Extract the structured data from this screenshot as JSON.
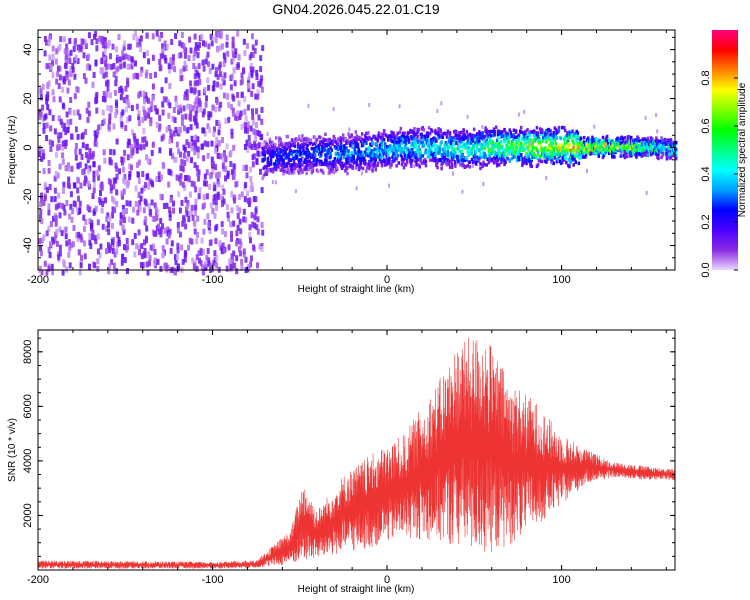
{
  "title": "GN04.2026.045.22.01.C19",
  "chart_data": [
    {
      "type": "heatmap",
      "xlabel": "Height of straight line (km)",
      "ylabel": "Frequency (Hz)",
      "xlim": [
        -200,
        165
      ],
      "ylim": [
        -50,
        48
      ],
      "x_ticks": [
        -200,
        -100,
        0,
        100
      ],
      "y_ticks": [
        -40,
        -20,
        0,
        20,
        40
      ],
      "colorbar": {
        "label": "Normalized spectral amplitude",
        "range": [
          0,
          1
        ],
        "ticks": [
          "0.0",
          "0.2",
          "0.4",
          "0.6",
          "0.8"
        ],
        "tick_values": [
          0,
          0.2,
          0.4,
          0.6,
          0.8
        ],
        "colormap": [
          "#e8d6ff",
          "#8a2be2",
          "#4b00ff",
          "#0000ff",
          "#00a0ff",
          "#00ffff",
          "#00ff80",
          "#00ff00",
          "#80ff00",
          "#ffff00",
          "#ff8000",
          "#ff0000",
          "#ff0080"
        ]
      },
      "noise_region": {
        "x_range": [
          -200,
          -72
        ],
        "freq_range": [
          -50,
          48
        ],
        "amplitude_range": [
          0.0,
          0.1
        ]
      },
      "signal_band_center": [
        {
          "x": -72,
          "f": -4
        },
        {
          "x": -60,
          "f": -3
        },
        {
          "x": -45,
          "f": -2
        },
        {
          "x": -30,
          "f": -2
        },
        {
          "x": -15,
          "f": -1
        },
        {
          "x": 0,
          "f": 0
        },
        {
          "x": 20,
          "f": 1
        },
        {
          "x": 40,
          "f": 0
        },
        {
          "x": 60,
          "f": 1
        },
        {
          "x": 80,
          "f": 1
        },
        {
          "x": 100,
          "f": 1
        },
        {
          "x": 120,
          "f": 1
        },
        {
          "x": 140,
          "f": 1
        },
        {
          "x": 165,
          "f": 0
        }
      ],
      "signal_band_peak_amplitude": [
        {
          "x": -72,
          "a": 0.3
        },
        {
          "x": -40,
          "a": 0.35
        },
        {
          "x": 0,
          "a": 0.45
        },
        {
          "x": 40,
          "a": 0.55
        },
        {
          "x": 70,
          "a": 0.7
        },
        {
          "x": 100,
          "a": 0.85
        },
        {
          "x": 120,
          "a": 0.9
        },
        {
          "x": 165,
          "a": 0.5
        }
      ]
    },
    {
      "type": "line",
      "xlabel": "Height of straight line (km)",
      "ylabel": "SNR (10 * v/v)",
      "xlim": [
        -200,
        165
      ],
      "ylim": [
        0,
        8800
      ],
      "x_ticks": [
        -200,
        -100,
        0,
        100
      ],
      "y_ticks": [
        2000,
        4000,
        6000,
        8000
      ],
      "color": "#ee3333",
      "envelope": [
        {
          "x": -200,
          "lo": 50,
          "hi": 350
        },
        {
          "x": -100,
          "lo": 50,
          "hi": 300
        },
        {
          "x": -75,
          "lo": 80,
          "hi": 350
        },
        {
          "x": -55,
          "lo": 200,
          "hi": 1500
        },
        {
          "x": -48,
          "lo": 300,
          "hi": 3300
        },
        {
          "x": -40,
          "lo": 400,
          "hi": 2200
        },
        {
          "x": -25,
          "lo": 600,
          "hi": 3500
        },
        {
          "x": -10,
          "lo": 800,
          "hi": 4200
        },
        {
          "x": 10,
          "lo": 1200,
          "hi": 5000
        },
        {
          "x": 30,
          "lo": 1000,
          "hi": 7000
        },
        {
          "x": 40,
          "lo": 800,
          "hi": 8300
        },
        {
          "x": 55,
          "lo": 500,
          "hi": 8800
        },
        {
          "x": 70,
          "lo": 900,
          "hi": 7000
        },
        {
          "x": 85,
          "lo": 1500,
          "hi": 6200
        },
        {
          "x": 100,
          "lo": 2400,
          "hi": 5000
        },
        {
          "x": 115,
          "lo": 3200,
          "hi": 4400
        },
        {
          "x": 130,
          "lo": 3400,
          "hi": 3950
        },
        {
          "x": 150,
          "lo": 3300,
          "hi": 3800
        },
        {
          "x": 165,
          "lo": 3300,
          "hi": 3700
        }
      ]
    }
  ]
}
